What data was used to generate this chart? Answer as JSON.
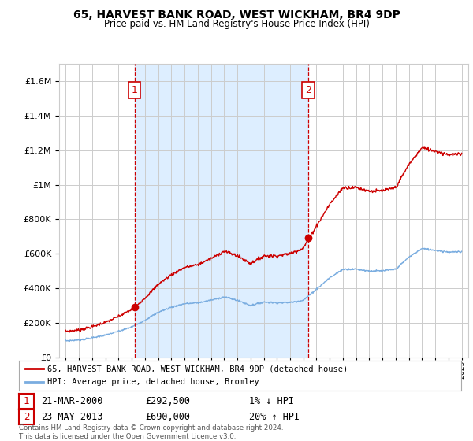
{
  "title": "65, HARVEST BANK ROAD, WEST WICKHAM, BR4 9DP",
  "subtitle": "Price paid vs. HM Land Registry's House Price Index (HPI)",
  "legend_line1": "65, HARVEST BANK ROAD, WEST WICKHAM, BR4 9DP (detached house)",
  "legend_line2": "HPI: Average price, detached house, Bromley",
  "annotation1_date": "21-MAR-2000",
  "annotation1_price": "£292,500",
  "annotation1_hpi": "1% ↓ HPI",
  "annotation2_date": "23-MAY-2013",
  "annotation2_price": "£690,000",
  "annotation2_hpi": "20% ↑ HPI",
  "footer": "Contains HM Land Registry data © Crown copyright and database right 2024.\nThis data is licensed under the Open Government Licence v3.0.",
  "sale1_year": 2000.22,
  "sale1_price": 292500,
  "sale2_year": 2013.38,
  "sale2_price": 690000,
  "red_color": "#cc0000",
  "blue_color": "#7aade0",
  "shade_color": "#ddeeff",
  "background_color": "#ffffff",
  "grid_color": "#cccccc",
  "ylim_min": 0,
  "ylim_max": 1700000,
  "xlim_min": 1994.5,
  "xlim_max": 2025.5,
  "hpi_anchors_years": [
    1995,
    1996,
    1997,
    1998,
    1999,
    2000,
    2001,
    2002,
    2003,
    2004,
    2005,
    2006,
    2007,
    2008,
    2009,
    2010,
    2011,
    2012,
    2013,
    2014,
    2015,
    2016,
    2017,
    2018,
    2019,
    2020,
    2021,
    2022,
    2023,
    2024,
    2025
  ],
  "hpi_anchors_vals": [
    95000,
    100000,
    112000,
    128000,
    150000,
    175000,
    215000,
    260000,
    290000,
    310000,
    315000,
    330000,
    350000,
    330000,
    300000,
    320000,
    315000,
    318000,
    330000,
    395000,
    460000,
    510000,
    510000,
    500000,
    500000,
    510000,
    580000,
    630000,
    620000,
    610000,
    610000
  ]
}
